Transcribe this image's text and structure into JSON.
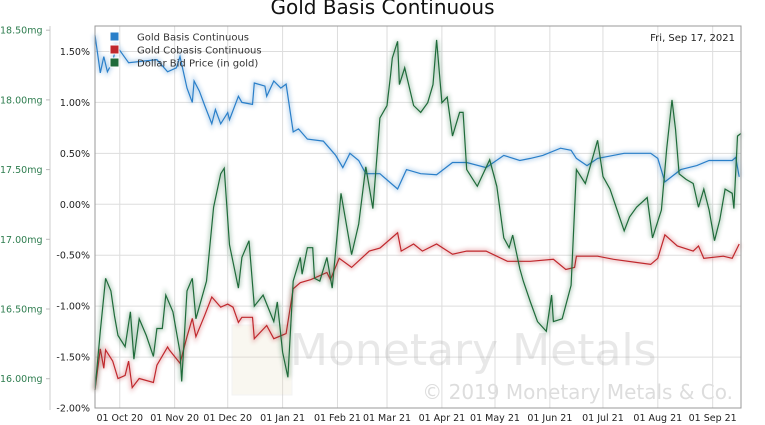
{
  "chart_data": {
    "type": "line",
    "title": "Gold Basis Continuous",
    "date_label": "Fri, Sep 17, 2021",
    "watermark": "Monetary Metals",
    "copyright": "© 2019 Monetary Metals & Co.",
    "xlim": [
      "2020-09-17",
      "2021-09-17"
    ],
    "x_ticks": [
      {
        "date": "2020-10-01",
        "label": "01 Oct 20"
      },
      {
        "date": "2020-11-01",
        "label": "01 Nov 20"
      },
      {
        "date": "2020-12-01",
        "label": "01 Dec 20"
      },
      {
        "date": "2021-01-01",
        "label": "01 Jan 21"
      },
      {
        "date": "2021-02-01",
        "label": "01 Feb 21"
      },
      {
        "date": "2021-03-01",
        "label": "01 Mar 21"
      },
      {
        "date": "2021-04-01",
        "label": "01 Apr 21"
      },
      {
        "date": "2021-05-01",
        "label": "01 May 21"
      },
      {
        "date": "2021-06-01",
        "label": "01 Jun 21"
      },
      {
        "date": "2021-07-01",
        "label": "01 Jul 21"
      },
      {
        "date": "2021-08-01",
        "label": "01 Aug 21"
      },
      {
        "date": "2021-09-01",
        "label": "01 Sep 21"
      }
    ],
    "y_left_pct": {
      "range": [
        -2.0,
        1.75
      ],
      "ticks": [
        -2.0,
        -1.5,
        -1.0,
        -0.5,
        0.0,
        0.5,
        1.0,
        1.5
      ],
      "labels": [
        "-2.00%",
        "-1.50%",
        "-1.00%",
        "-0.50%",
        "0.00%",
        "0.50%",
        "1.00%",
        "1.50%"
      ]
    },
    "y_left_mg": {
      "range": [
        15.79,
        18.53
      ],
      "ticks": [
        16.0,
        16.5,
        17.0,
        17.5,
        18.0,
        18.5
      ],
      "labels": [
        "16.00mg",
        "16.50mg",
        "17.00mg",
        "17.50mg",
        "18.00mg",
        "18.50mg"
      ]
    },
    "grid": true,
    "legend_position": "top-left",
    "series": [
      {
        "name": "Gold Basis Continuous",
        "color": "#2a7fc9",
        "axis": "pct",
        "points": [
          [
            "2020-09-17",
            1.66
          ],
          [
            "2020-09-20",
            1.29
          ],
          [
            "2020-09-22",
            1.45
          ],
          [
            "2020-09-24",
            1.3
          ],
          [
            "2020-09-27",
            1.4
          ],
          [
            "2020-09-29",
            1.56
          ],
          [
            "2020-10-06",
            1.39
          ],
          [
            "2020-10-22",
            1.42
          ],
          [
            "2020-10-28",
            1.3
          ],
          [
            "2020-11-02",
            1.34
          ],
          [
            "2020-11-04",
            1.45
          ],
          [
            "2020-11-08",
            1.14
          ],
          [
            "2020-11-11",
            1.0
          ],
          [
            "2020-11-12",
            1.21
          ],
          [
            "2020-11-15",
            1.11
          ],
          [
            "2020-11-18",
            0.97
          ],
          [
            "2020-11-22",
            0.79
          ],
          [
            "2020-11-24",
            0.93
          ],
          [
            "2020-11-27",
            0.79
          ],
          [
            "2020-12-01",
            0.9
          ],
          [
            "2020-12-02",
            0.83
          ],
          [
            "2020-12-07",
            1.06
          ],
          [
            "2020-12-09",
            1.0
          ],
          [
            "2020-12-15",
            0.98
          ],
          [
            "2020-12-16",
            1.19
          ],
          [
            "2020-12-22",
            1.16
          ],
          [
            "2020-12-23",
            1.06
          ],
          [
            "2020-12-27",
            1.21
          ],
          [
            "2020-12-31",
            1.14
          ],
          [
            "2021-01-03",
            1.18
          ],
          [
            "2021-01-07",
            0.71
          ],
          [
            "2021-01-10",
            0.74
          ],
          [
            "2021-01-15",
            0.64
          ],
          [
            "2021-01-24",
            0.62
          ],
          [
            "2021-01-27",
            0.56
          ],
          [
            "2021-01-31",
            0.48
          ],
          [
            "2021-02-04",
            0.36
          ],
          [
            "2021-02-08",
            0.5
          ],
          [
            "2021-02-13",
            0.43
          ],
          [
            "2021-02-17",
            0.3
          ],
          [
            "2021-02-25",
            0.3
          ],
          [
            "2021-03-07",
            0.15
          ],
          [
            "2021-03-12",
            0.34
          ],
          [
            "2021-03-20",
            0.3
          ],
          [
            "2021-03-29",
            0.29
          ],
          [
            "2021-04-07",
            0.41
          ],
          [
            "2021-04-15",
            0.41
          ],
          [
            "2021-04-26",
            0.36
          ],
          [
            "2021-05-06",
            0.48
          ],
          [
            "2021-05-15",
            0.43
          ],
          [
            "2021-05-21",
            0.45
          ],
          [
            "2021-05-28",
            0.48
          ],
          [
            "2021-06-07",
            0.55
          ],
          [
            "2021-06-13",
            0.53
          ],
          [
            "2021-06-16",
            0.45
          ],
          [
            "2021-06-22",
            0.38
          ],
          [
            "2021-06-28",
            0.45
          ],
          [
            "2021-07-13",
            0.5
          ],
          [
            "2021-07-28",
            0.5
          ],
          [
            "2021-08-01",
            0.45
          ],
          [
            "2021-08-05",
            0.22
          ],
          [
            "2021-08-14",
            0.34
          ],
          [
            "2021-08-23",
            0.38
          ],
          [
            "2021-08-30",
            0.43
          ],
          [
            "2021-09-12",
            0.43
          ],
          [
            "2021-09-14",
            0.46
          ],
          [
            "2021-09-16",
            0.27
          ]
        ]
      },
      {
        "name": "Gold Cobasis Continuous",
        "color": "#c0282d",
        "axis": "pct",
        "points": [
          [
            "2020-09-17",
            -1.82
          ],
          [
            "2020-09-20",
            -1.42
          ],
          [
            "2020-09-22",
            -1.61
          ],
          [
            "2020-09-23",
            -1.43
          ],
          [
            "2020-09-27",
            -1.54
          ],
          [
            "2020-09-30",
            -1.71
          ],
          [
            "2020-10-04",
            -1.68
          ],
          [
            "2020-10-06",
            -1.54
          ],
          [
            "2020-10-08",
            -1.8
          ],
          [
            "2020-10-12",
            -1.71
          ],
          [
            "2020-10-20",
            -1.75
          ],
          [
            "2020-10-22",
            -1.58
          ],
          [
            "2020-10-28",
            -1.4
          ],
          [
            "2020-10-29",
            -1.43
          ],
          [
            "2020-11-04",
            -1.56
          ],
          [
            "2020-11-08",
            -1.3
          ],
          [
            "2020-11-11",
            -1.12
          ],
          [
            "2020-11-13",
            -1.3
          ],
          [
            "2020-11-18",
            -1.09
          ],
          [
            "2020-11-22",
            -0.91
          ],
          [
            "2020-11-27",
            -1.01
          ],
          [
            "2020-12-01",
            -0.98
          ],
          [
            "2020-12-04",
            -1.01
          ],
          [
            "2020-12-07",
            -1.16
          ],
          [
            "2020-12-09",
            -1.11
          ],
          [
            "2020-12-15",
            -1.11
          ],
          [
            "2020-12-16",
            -1.32
          ],
          [
            "2020-12-23",
            -1.19
          ],
          [
            "2020-12-27",
            -1.32
          ],
          [
            "2021-01-03",
            -1.27
          ],
          [
            "2021-01-07",
            -0.83
          ],
          [
            "2021-01-11",
            -0.77
          ],
          [
            "2021-01-17",
            -0.74
          ],
          [
            "2021-01-26",
            -0.67
          ],
          [
            "2021-01-28",
            -0.74
          ],
          [
            "2021-02-02",
            -0.53
          ],
          [
            "2021-02-09",
            -0.62
          ],
          [
            "2021-02-19",
            -0.46
          ],
          [
            "2021-02-25",
            -0.43
          ],
          [
            "2021-03-07",
            -0.28
          ],
          [
            "2021-03-09",
            -0.46
          ],
          [
            "2021-03-16",
            -0.39
          ],
          [
            "2021-03-21",
            -0.46
          ],
          [
            "2021-03-29",
            -0.39
          ],
          [
            "2021-04-07",
            -0.49
          ],
          [
            "2021-04-15",
            -0.46
          ],
          [
            "2021-04-26",
            -0.46
          ],
          [
            "2021-05-08",
            -0.56
          ],
          [
            "2021-05-21",
            -0.56
          ],
          [
            "2021-06-03",
            -0.54
          ],
          [
            "2021-06-10",
            -0.64
          ],
          [
            "2021-06-15",
            -0.62
          ],
          [
            "2021-06-16",
            -0.51
          ],
          [
            "2021-06-28",
            -0.51
          ],
          [
            "2021-07-07",
            -0.54
          ],
          [
            "2021-07-28",
            -0.59
          ],
          [
            "2021-08-01",
            -0.53
          ],
          [
            "2021-08-05",
            -0.3
          ],
          [
            "2021-08-12",
            -0.41
          ],
          [
            "2021-08-21",
            -0.46
          ],
          [
            "2021-08-24",
            -0.41
          ],
          [
            "2021-08-27",
            -0.53
          ],
          [
            "2021-09-07",
            -0.51
          ],
          [
            "2021-09-12",
            -0.53
          ],
          [
            "2021-09-16",
            -0.39
          ]
        ]
      },
      {
        "name": "Dollar Bid Price (in gold)",
        "color": "#1f6b3a",
        "axis": "mg",
        "points": [
          [
            "2020-09-17",
            15.92
          ],
          [
            "2020-09-20",
            16.34
          ],
          [
            "2020-09-23",
            16.72
          ],
          [
            "2020-09-26",
            16.63
          ],
          [
            "2020-09-28",
            16.45
          ],
          [
            "2020-09-30",
            16.31
          ],
          [
            "2020-10-04",
            16.23
          ],
          [
            "2020-10-07",
            16.48
          ],
          [
            "2020-10-09",
            16.14
          ],
          [
            "2020-10-12",
            16.43
          ],
          [
            "2020-10-16",
            16.31
          ],
          [
            "2020-10-20",
            16.16
          ],
          [
            "2020-10-22",
            16.36
          ],
          [
            "2020-10-25",
            16.36
          ],
          [
            "2020-10-27",
            16.6
          ],
          [
            "2020-10-31",
            16.48
          ],
          [
            "2020-11-04",
            16.19
          ],
          [
            "2020-11-05",
            15.98
          ],
          [
            "2020-11-08",
            16.63
          ],
          [
            "2020-11-11",
            16.72
          ],
          [
            "2020-11-13",
            16.43
          ],
          [
            "2020-11-19",
            16.7
          ],
          [
            "2020-11-23",
            17.23
          ],
          [
            "2020-11-27",
            17.47
          ],
          [
            "2020-11-29",
            17.51
          ],
          [
            "2020-12-02",
            16.96
          ],
          [
            "2020-12-07",
            16.65
          ],
          [
            "2020-12-09",
            16.87
          ],
          [
            "2020-12-13",
            16.99
          ],
          [
            "2020-12-16",
            16.52
          ],
          [
            "2020-12-21",
            16.6
          ],
          [
            "2020-12-27",
            16.41
          ],
          [
            "2020-12-29",
            16.55
          ],
          [
            "2021-01-01",
            16.19
          ],
          [
            "2021-01-04",
            16.01
          ],
          [
            "2021-01-07",
            16.7
          ],
          [
            "2021-01-11",
            16.87
          ],
          [
            "2021-01-12",
            16.75
          ],
          [
            "2021-01-15",
            16.94
          ],
          [
            "2021-01-18",
            16.94
          ],
          [
            "2021-01-19",
            16.72
          ],
          [
            "2021-01-22",
            16.7
          ],
          [
            "2021-01-26",
            16.87
          ],
          [
            "2021-01-29",
            16.65
          ],
          [
            "2021-02-03",
            17.33
          ],
          [
            "2021-02-09",
            16.89
          ],
          [
            "2021-02-13",
            17.11
          ],
          [
            "2021-02-17",
            17.52
          ],
          [
            "2021-02-21",
            17.22
          ],
          [
            "2021-02-25",
            17.87
          ],
          [
            "2021-03-01",
            17.96
          ],
          [
            "2021-03-03",
            18.18
          ],
          [
            "2021-03-04",
            18.3
          ],
          [
            "2021-03-07",
            18.42
          ],
          [
            "2021-03-08",
            18.11
          ],
          [
            "2021-03-11",
            18.23
          ],
          [
            "2021-03-16",
            17.96
          ],
          [
            "2021-03-20",
            17.91
          ],
          [
            "2021-03-24",
            17.98
          ],
          [
            "2021-03-27",
            18.11
          ],
          [
            "2021-03-29",
            18.43
          ],
          [
            "2021-04-01",
            17.98
          ],
          [
            "2021-04-04",
            18.02
          ],
          [
            "2021-04-07",
            17.74
          ],
          [
            "2021-04-11",
            17.91
          ],
          [
            "2021-04-13",
            17.91
          ],
          [
            "2021-04-15",
            17.5
          ],
          [
            "2021-04-21",
            17.38
          ],
          [
            "2021-04-28",
            17.57
          ],
          [
            "2021-05-02",
            17.38
          ],
          [
            "2021-05-06",
            17.01
          ],
          [
            "2021-05-09",
            16.94
          ],
          [
            "2021-05-11",
            17.03
          ],
          [
            "2021-05-15",
            16.79
          ],
          [
            "2021-05-17",
            16.7
          ],
          [
            "2021-05-21",
            16.55
          ],
          [
            "2021-05-25",
            16.41
          ],
          [
            "2021-05-30",
            16.34
          ],
          [
            "2021-06-02",
            16.6
          ],
          [
            "2021-06-03",
            16.41
          ],
          [
            "2021-06-08",
            16.43
          ],
          [
            "2021-06-13",
            16.67
          ],
          [
            "2021-06-16",
            17.5
          ],
          [
            "2021-06-21",
            17.4
          ],
          [
            "2021-06-28",
            17.71
          ],
          [
            "2021-07-01",
            17.45
          ],
          [
            "2021-07-05",
            17.36
          ],
          [
            "2021-07-09",
            17.21
          ],
          [
            "2021-07-13",
            17.06
          ],
          [
            "2021-07-16",
            17.16
          ],
          [
            "2021-07-20",
            17.23
          ],
          [
            "2021-07-26",
            17.3
          ],
          [
            "2021-07-29",
            17.01
          ],
          [
            "2021-08-03",
            17.21
          ],
          [
            "2021-08-06",
            17.65
          ],
          [
            "2021-08-09",
            18.0
          ],
          [
            "2021-08-11",
            17.79
          ],
          [
            "2021-08-13",
            17.47
          ],
          [
            "2021-08-17",
            17.43
          ],
          [
            "2021-08-21",
            17.4
          ],
          [
            "2021-08-24",
            17.23
          ],
          [
            "2021-08-27",
            17.36
          ],
          [
            "2021-08-30",
            17.21
          ],
          [
            "2021-09-02",
            16.99
          ],
          [
            "2021-09-05",
            17.14
          ],
          [
            "2021-09-08",
            17.36
          ],
          [
            "2021-09-12",
            17.33
          ],
          [
            "2021-09-13",
            17.22
          ],
          [
            "2021-09-15",
            17.74
          ],
          [
            "2021-09-17",
            17.76
          ]
        ]
      }
    ]
  }
}
